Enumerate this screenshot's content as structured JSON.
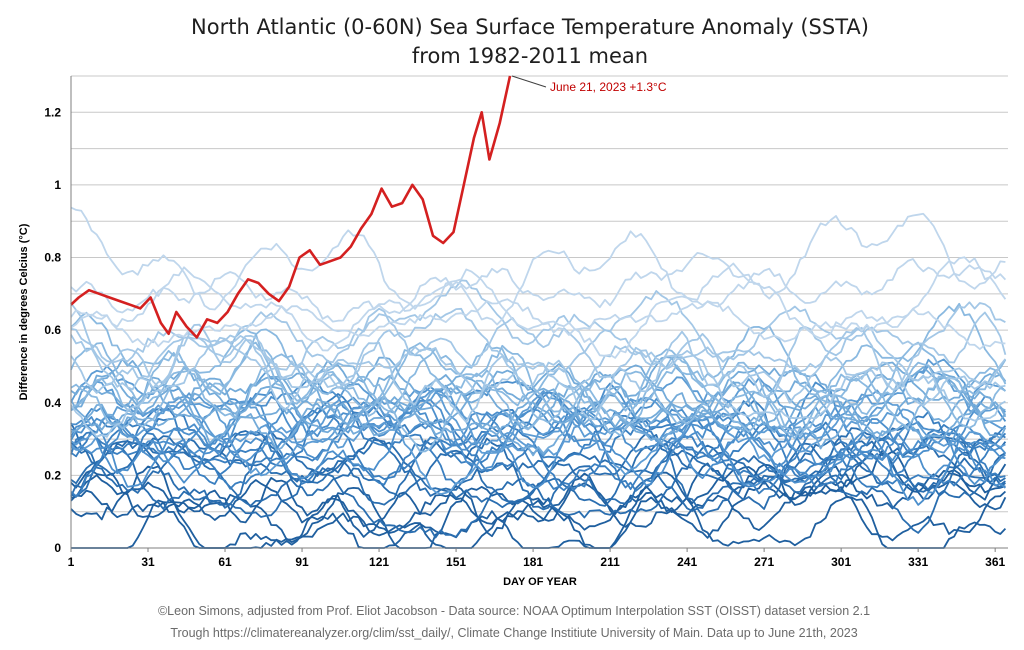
{
  "chart_data": {
    "type": "line",
    "title": "North Atlantic (0-60N) Sea Surface Temperature Anomaly (SSTA)",
    "subtitle": "from 1982-2011 mean",
    "xlabel": "DAY OF YEAR",
    "ylabel": "Difference in degrees Celcius (°C)",
    "xlim": [
      1,
      366
    ],
    "ylim": [
      0,
      1.3
    ],
    "x_ticks": [
      "1",
      "31",
      "61",
      "91",
      "121",
      "151",
      "181",
      "211",
      "241",
      "271",
      "301",
      "331",
      "361"
    ],
    "y_ticks": [
      "0",
      "0.2",
      "0.4",
      "0.6",
      "0.8",
      "1",
      "1.2"
    ],
    "grid": true,
    "legend": "none",
    "highlight": {
      "color": "#d42020",
      "annotation": "June 21, 2023 +1.3°C",
      "x": [
        1,
        4,
        8,
        12,
        16,
        20,
        24,
        28,
        32,
        36,
        39,
        42,
        46,
        50,
        54,
        58,
        62,
        66,
        70,
        74,
        78,
        82,
        86,
        90,
        94,
        98,
        102,
        106,
        110,
        114,
        118,
        122,
        126,
        130,
        134,
        138,
        142,
        146,
        150,
        154,
        158,
        161,
        164,
        168,
        172
      ],
      "y": [
        0.67,
        0.69,
        0.71,
        0.7,
        0.69,
        0.68,
        0.67,
        0.66,
        0.69,
        0.62,
        0.59,
        0.65,
        0.61,
        0.58,
        0.63,
        0.62,
        0.65,
        0.7,
        0.74,
        0.73,
        0.7,
        0.68,
        0.72,
        0.8,
        0.82,
        0.78,
        0.79,
        0.8,
        0.83,
        0.88,
        0.92,
        0.99,
        0.94,
        0.95,
        1.0,
        0.96,
        0.86,
        0.84,
        0.87,
        1.0,
        1.13,
        1.2,
        1.07,
        1.17,
        1.3
      ]
    },
    "background_series": {
      "count": 41,
      "colors": [
        "#1f5f9f",
        "#2a6eb0",
        "#3a7fc0",
        "#4c8fcc",
        "#5d9cd4",
        "#74abd9",
        "#8ab9e0",
        "#a3c7e6",
        "#bfd6ec"
      ],
      "base_levels": [
        0.05,
        0.08,
        0.1,
        0.12,
        0.15,
        0.17,
        0.19,
        0.2,
        0.22,
        0.23,
        0.25,
        0.26,
        0.27,
        0.28,
        0.29,
        0.3,
        0.31,
        0.32,
        0.33,
        0.34,
        0.35,
        0.36,
        0.37,
        0.38,
        0.39,
        0.4,
        0.41,
        0.42,
        0.43,
        0.45,
        0.46,
        0.47,
        0.48,
        0.5,
        0.52,
        0.55,
        0.58,
        0.62,
        0.66,
        0.72,
        0.78
      ]
    }
  },
  "credits": {
    "line1": "©Leon Simons, adjusted from Prof. Eliot Jacobson - Data source: NOAA Optimum Interpolation SST (OISST) dataset version 2.1",
    "line2": "Trough https://climatereanalyzer.org/clim/sst_daily/, Climate Change Institiute University of Main. Data up to June 21th, 2023"
  }
}
